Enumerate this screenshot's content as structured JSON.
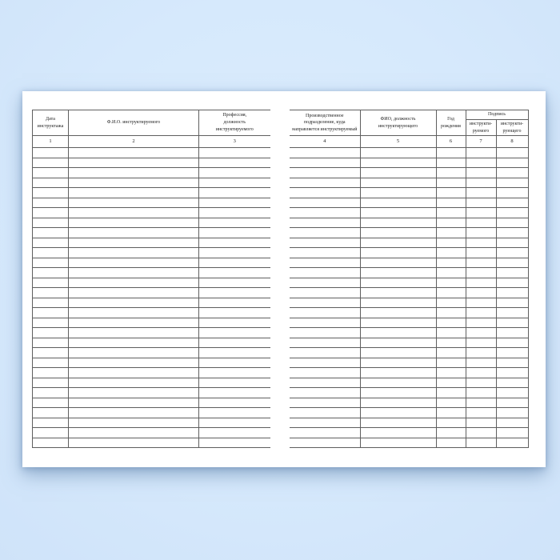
{
  "page": {
    "background_color": "#d6e9fc",
    "paper_color": "#ffffff",
    "line_color": "#5f5f5f",
    "description": "Blank two-page spread of a Russian safety briefing registration journal (журнал регистрации инструктажа) lying on a light blue background"
  },
  "left_table": {
    "col1_label": "Дата\nинструктажа",
    "col2_label": "Ф.И.О. инструктируемого",
    "col3_label": "Профессия,\nдолжность\nинструктируемого",
    "numbers": [
      "1",
      "2",
      "3"
    ],
    "empty_row_count": 30
  },
  "right_table": {
    "col4_label": "Производственное\nподразделение, куда\nнаправляется инструктируемый",
    "col5_label": "ФИО, должность\nинструктирующего",
    "col6_label": "Год\nрождения",
    "signature_group_label": "Подпись",
    "col7_label": "инструкти-\nруемого",
    "col8_label": "инструкти-\nрующего",
    "numbers": [
      "4",
      "5",
      "6",
      "7",
      "8"
    ],
    "empty_row_count": 30
  }
}
